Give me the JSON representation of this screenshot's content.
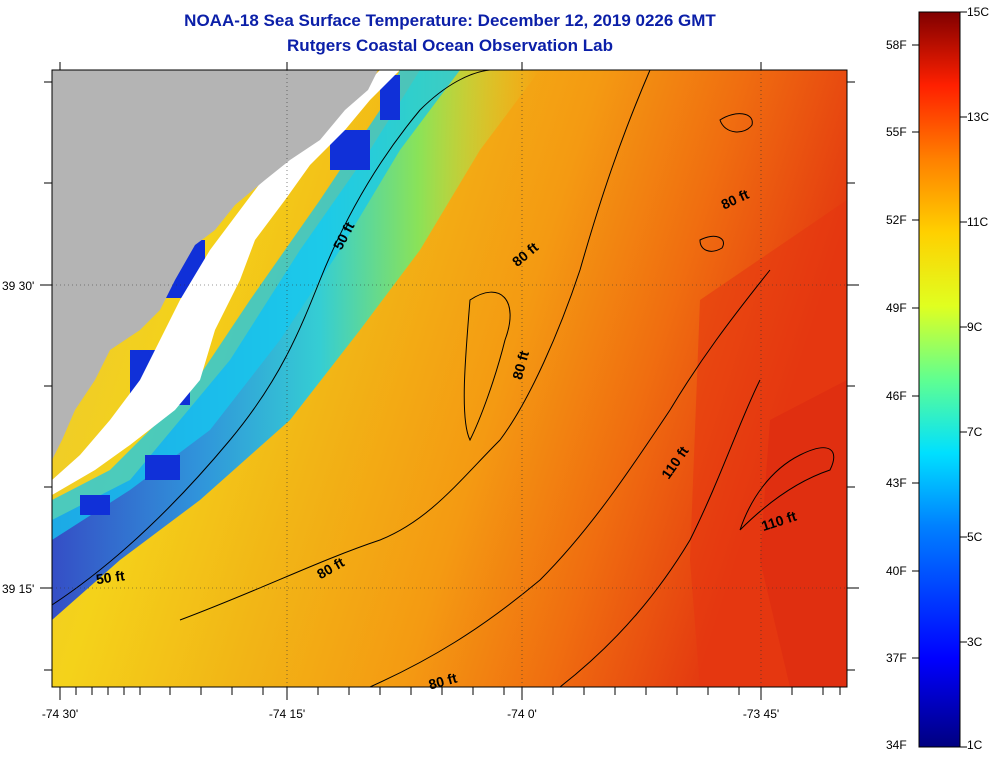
{
  "title": {
    "line1": "NOAA-18 Sea Surface Temperature:  December 12, 2019 0226 GMT",
    "line2": "Rutgers Coastal Ocean Observation Lab"
  },
  "map_axes": {
    "longitude_labels": [
      "-74 30'",
      "-74 15'",
      "-74 0'",
      "-73 45'"
    ],
    "latitude_labels": [
      "39 30'",
      "39 15'"
    ]
  },
  "depth_contour_labels": [
    "50 ft",
    "50 ft",
    "80 ft",
    "80 ft",
    "80 ft",
    "80 ft",
    "80 ft",
    "110 ft",
    "110 ft"
  ],
  "colorbar": {
    "fahrenheit_labels": [
      "58F",
      "55F",
      "52F",
      "49F",
      "46F",
      "43F",
      "40F",
      "37F",
      "34F"
    ],
    "celsius_labels": [
      "15C",
      "13C",
      "11C",
      "9C",
      "7C",
      "5C",
      "3C",
      "1C"
    ]
  },
  "colors": {
    "title": "#0b1fa8",
    "land": "#b4b4b4",
    "no_data": "#ffffff"
  }
}
